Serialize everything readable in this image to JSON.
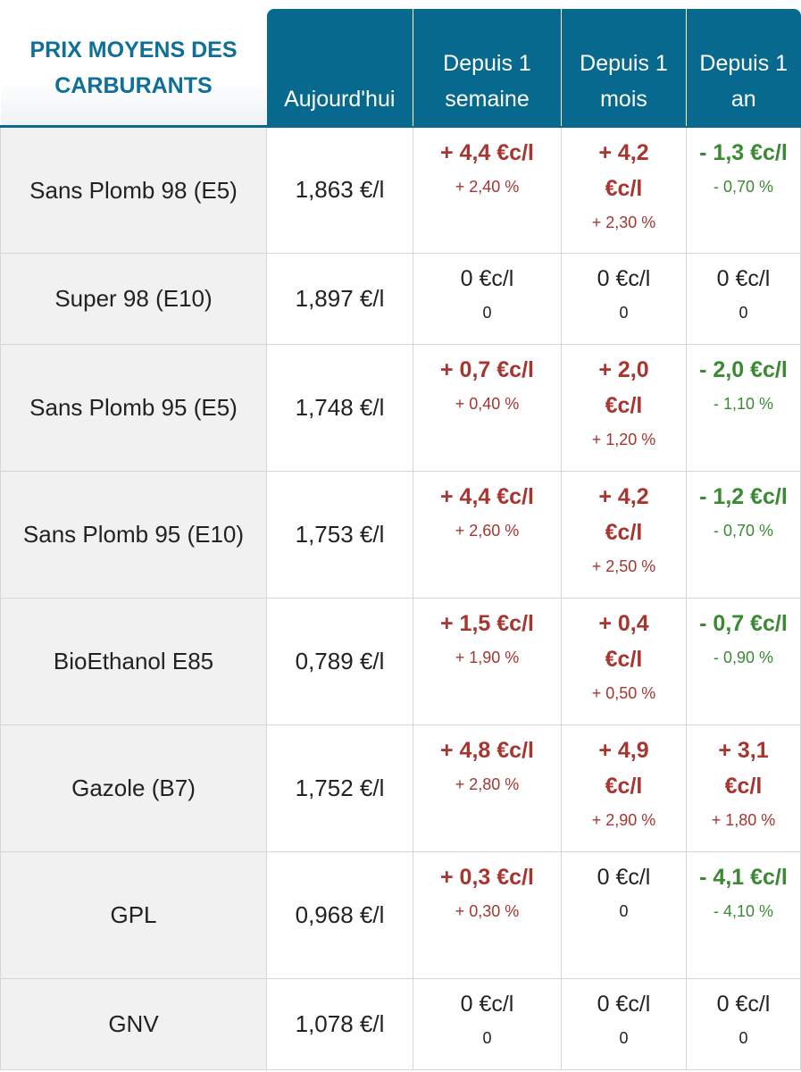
{
  "header": {
    "title": "PRIX MOYENS DES\nCARBURANTS",
    "columns": [
      "Aujourd'hui",
      "Depuis 1 semaine",
      "Depuis 1 mois",
      "Depuis 1 an"
    ]
  },
  "colors": {
    "header_bg": "#08698f",
    "title_text": "#106f98",
    "increase": "#a8352f",
    "decrease": "#3a8a33",
    "row_label_bg": "#f1f1f1"
  },
  "rows": [
    {
      "name": "Sans Plomb 98 (E5)",
      "today": "1,863 €/l",
      "week": {
        "value": "+ 4,4 €c/l",
        "pct": "+ 2,40 %",
        "trend": "up"
      },
      "month": {
        "value": "+ 4,2 €c/l",
        "pct": "+ 2,30 %",
        "trend": "up"
      },
      "year": {
        "value": "- 1,3 €c/l",
        "pct": "- 0,70 %",
        "trend": "down"
      }
    },
    {
      "name": "Super 98 (E10)",
      "today": "1,897 €/l",
      "week": {
        "value": "0 €c/l",
        "pct": "0",
        "trend": "zero"
      },
      "month": {
        "value": "0 €c/l",
        "pct": "0",
        "trend": "zero"
      },
      "year": {
        "value": "0 €c/l",
        "pct": "0",
        "trend": "zero"
      }
    },
    {
      "name": "Sans Plomb 95 (E5)",
      "today": "1,748 €/l",
      "week": {
        "value": "+ 0,7 €c/l",
        "pct": "+ 0,40 %",
        "trend": "up"
      },
      "month": {
        "value": "+ 2,0 €c/l",
        "pct": "+ 1,20 %",
        "trend": "up"
      },
      "year": {
        "value": "- 2,0 €c/l",
        "pct": "- 1,10 %",
        "trend": "down"
      }
    },
    {
      "name": "Sans Plomb 95 (E10)",
      "today": "1,753 €/l",
      "week": {
        "value": "+ 4,4 €c/l",
        "pct": "+ 2,60 %",
        "trend": "up"
      },
      "month": {
        "value": "+ 4,2 €c/l",
        "pct": "+ 2,50 %",
        "trend": "up"
      },
      "year": {
        "value": "- 1,2 €c/l",
        "pct": "- 0,70 %",
        "trend": "down"
      }
    },
    {
      "name": "BioEthanol E85",
      "today": "0,789 €/l",
      "week": {
        "value": "+ 1,5 €c/l",
        "pct": "+ 1,90 %",
        "trend": "up"
      },
      "month": {
        "value": "+ 0,4 €c/l",
        "pct": "+ 0,50 %",
        "trend": "up"
      },
      "year": {
        "value": "- 0,7 €c/l",
        "pct": "- 0,90 %",
        "trend": "down"
      }
    },
    {
      "name": "Gazole (B7)",
      "today": "1,752 €/l",
      "week": {
        "value": "+ 4,8 €c/l",
        "pct": "+ 2,80 %",
        "trend": "up"
      },
      "month": {
        "value": "+ 4,9 €c/l",
        "pct": "+ 2,90 %",
        "trend": "up"
      },
      "year": {
        "value": "+ 3,1 €c/l",
        "pct": "+ 1,80 %",
        "trend": "up"
      }
    },
    {
      "name": "GPL",
      "today": "0,968 €/l",
      "week": {
        "value": "+ 0,3 €c/l",
        "pct": "+ 0,30 %",
        "trend": "up"
      },
      "month": {
        "value": "0 €c/l",
        "pct": "0",
        "trend": "zero"
      },
      "year": {
        "value": "- 4,1 €c/l",
        "pct": "- 4,10 %",
        "trend": "down"
      }
    },
    {
      "name": "GNV",
      "today": "1,078 €/l",
      "week": {
        "value": "0 €c/l",
        "pct": "0",
        "trend": "zero"
      },
      "month": {
        "value": "0 €c/l",
        "pct": "0",
        "trend": "zero"
      },
      "year": {
        "value": "0 €c/l",
        "pct": "0",
        "trend": "zero"
      }
    }
  ]
}
